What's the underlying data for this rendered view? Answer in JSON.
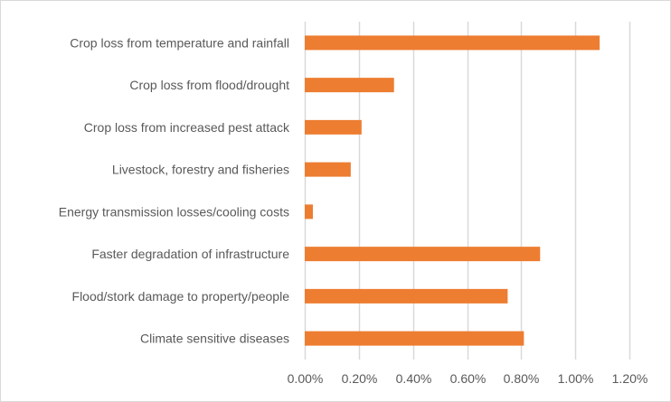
{
  "chart_data": {
    "type": "bar",
    "orientation": "horizontal",
    "title": "",
    "xlabel": "",
    "ylabel": "",
    "categories": [
      "Crop loss from temperature and rainfall",
      "Crop loss from flood/drought",
      "Crop loss from increased pest attack",
      "Livestock, forestry and fisheries",
      "Energy transmission losses/cooling costs",
      "Faster degradation of infrastructure",
      "Flood/stork damage to property/people",
      "Climate sensitive diseases"
    ],
    "values": [
      1.09,
      0.33,
      0.21,
      0.17,
      0.03,
      0.87,
      0.75,
      0.81
    ],
    "value_unit": "%",
    "xlim": [
      0,
      1.2
    ],
    "xticks": [
      0,
      0.2,
      0.4,
      0.6,
      0.8,
      1.0,
      1.2
    ],
    "xtick_labels": [
      "0.00%",
      "0.20%",
      "0.40%",
      "0.60%",
      "0.80%",
      "1.00%",
      "1.20%"
    ],
    "grid": "vertical",
    "legend": "none",
    "bar_color": "#ED7D31",
    "grid_color": "#D9D9D9",
    "text_color": "#595959"
  }
}
